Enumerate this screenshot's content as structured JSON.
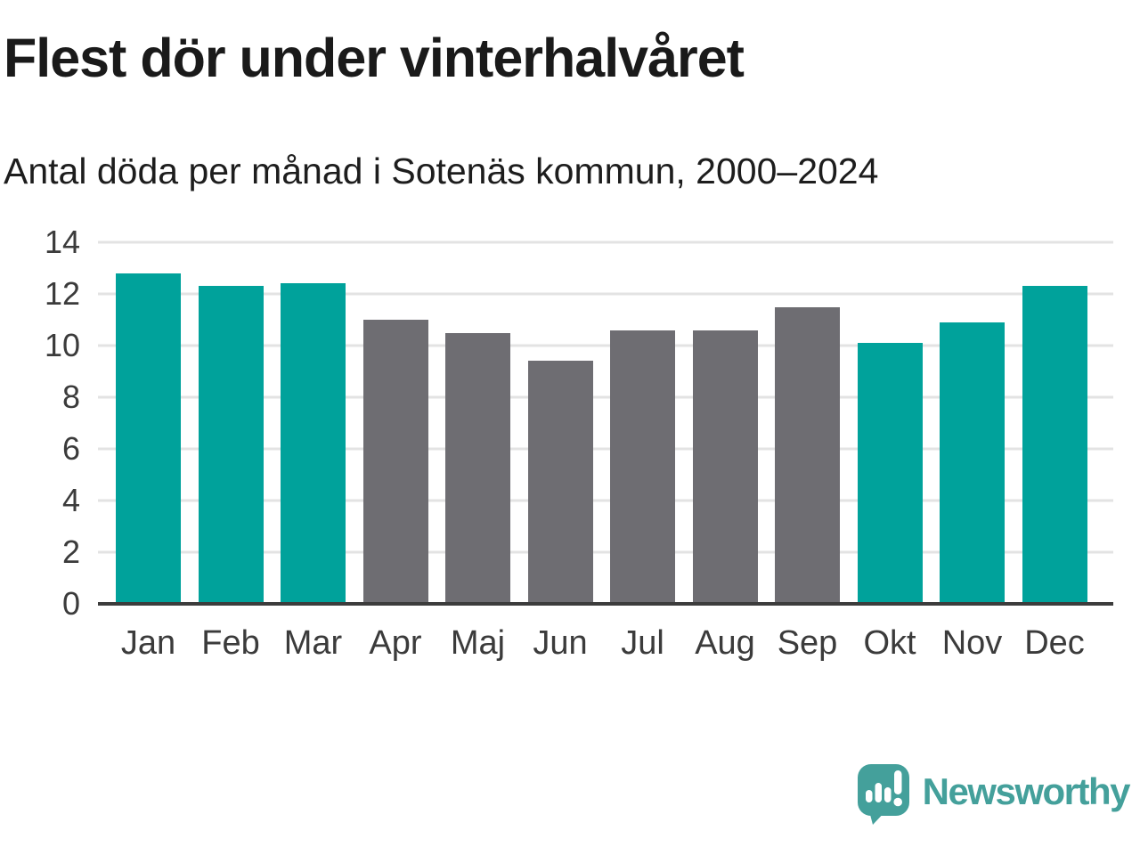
{
  "header": {
    "title": "Flest dör under vinterhalvåret",
    "subtitle": "Antal döda per månad i Sotenäs kommun, 2000–2024"
  },
  "chart_data": {
    "type": "bar",
    "title": "Flest dör under vinterhalvåret",
    "subtitle": "Antal döda per månad i Sotenäs kommun, 2000–2024",
    "categories": [
      "Jan",
      "Feb",
      "Mar",
      "Apr",
      "Maj",
      "Jun",
      "Jul",
      "Aug",
      "Sep",
      "Okt",
      "Nov",
      "Dec"
    ],
    "values": [
      12.8,
      12.3,
      12.4,
      11.0,
      10.5,
      9.4,
      10.6,
      10.6,
      11.5,
      10.1,
      10.9,
      12.3
    ],
    "bar_colors": [
      "teal",
      "teal",
      "teal",
      "gray",
      "gray",
      "gray",
      "gray",
      "gray",
      "gray",
      "teal",
      "teal",
      "teal"
    ],
    "xlabel": "",
    "ylabel": "",
    "ylim": [
      0,
      14
    ],
    "yticks": [
      0,
      2,
      4,
      6,
      8,
      10,
      12,
      14
    ],
    "grid": true,
    "legend": false,
    "highlight_meaning": "winter half-year months (Jan–Mar, Okt–Dec) in teal; summer half-year (Apr–Sep) in gray"
  },
  "colors": {
    "teal": "#00a29b",
    "gray": "#6e6d72",
    "grid": "#e3e3e3",
    "axis": "#3c3c3c",
    "title_text": "#1a1a1a",
    "tick_text": "#3b3b3b",
    "logo_teal": "#44a09b"
  },
  "footer": {
    "brand": "Newsworthy",
    "logo_icon": "newsworthy-speech-bubble-bar-chart-icon"
  }
}
